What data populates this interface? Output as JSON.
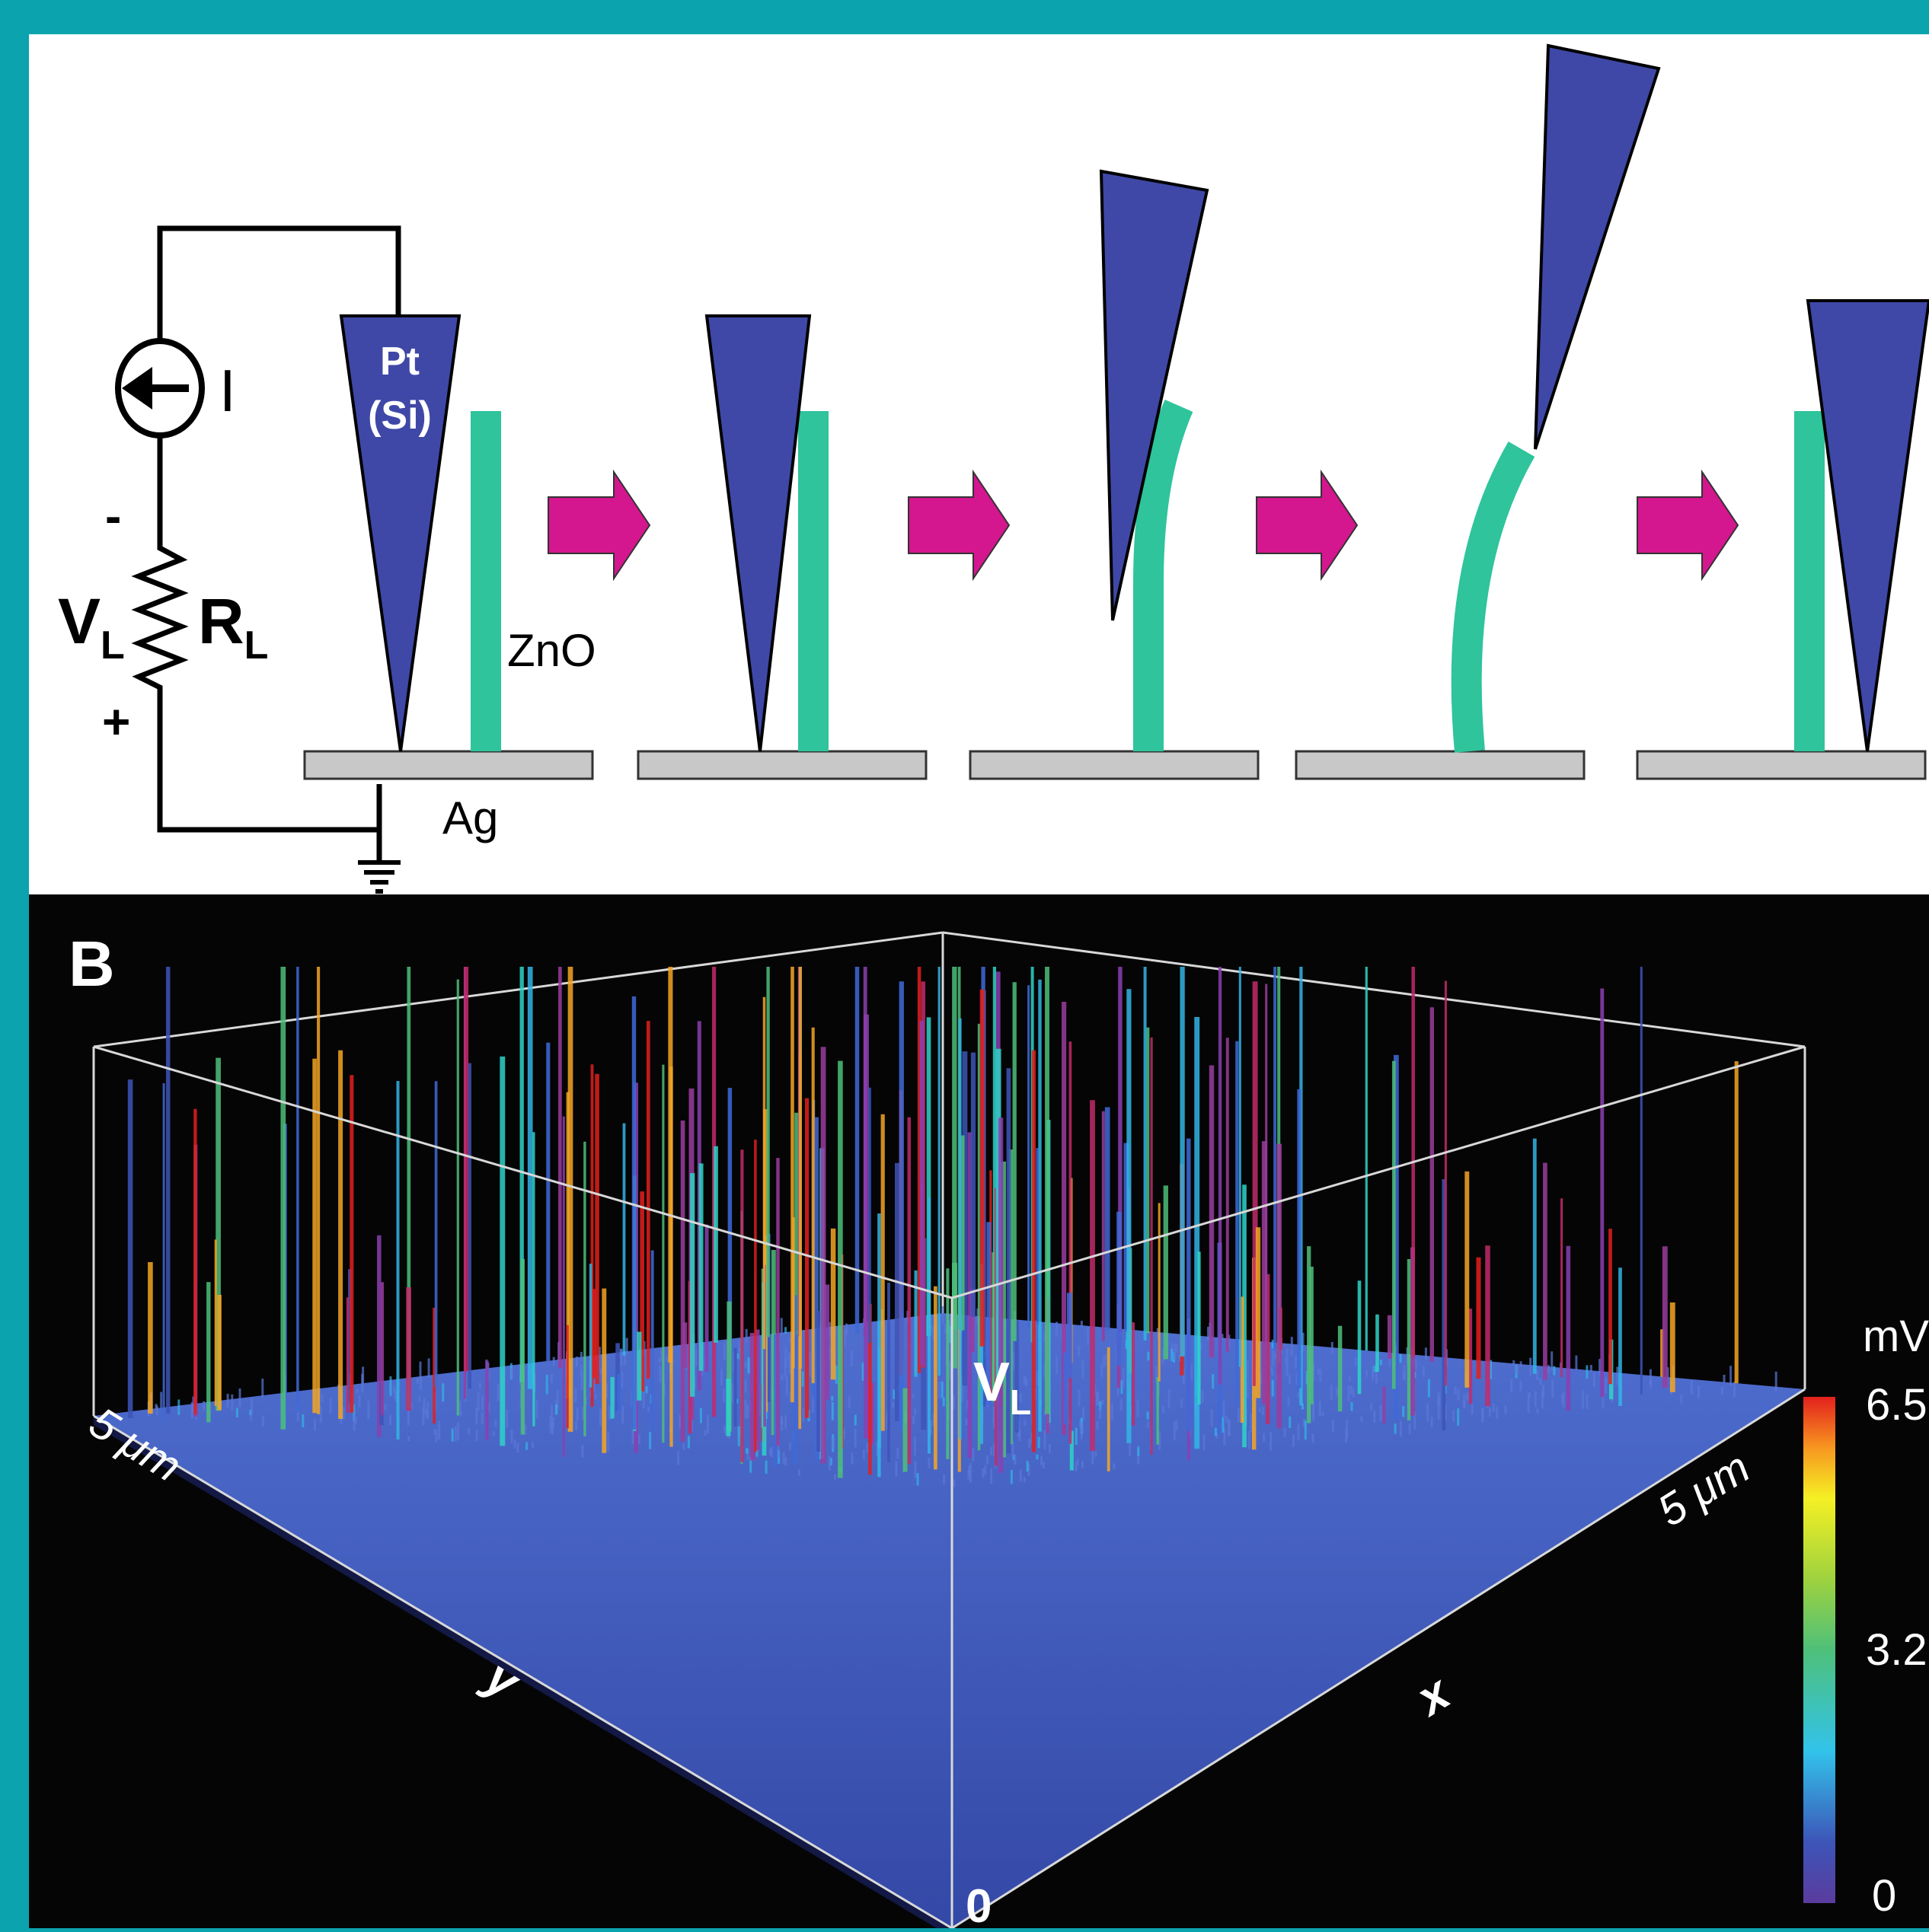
{
  "panel_a": {
    "tip_label_line1": "Pt",
    "tip_label_line2": "(Si)",
    "nanowire_label": "ZnO",
    "substrate_label": "Ag",
    "current_label": "I",
    "load_voltage_label": "V",
    "load_voltage_subscript": "L",
    "load_resistor_label": "R",
    "load_resistor_subscript": "L",
    "minus_sign": "-",
    "plus_sign": "+",
    "colors": {
      "tip": "#3f48a6",
      "nanowire": "#2fc49b",
      "arrow": "#d4168f",
      "substrate": "#c8c8c8"
    }
  },
  "panel_b": {
    "panel_label": "B",
    "axis_y_length": "5 μm",
    "axis_x_length": "5 μm",
    "axis_y_label": "y",
    "axis_x_label": "x",
    "axis_z_label": "V",
    "axis_z_subscript": "L",
    "origin_label": "0",
    "colorbar_unit": "mV",
    "colorbar_ticks": [
      "6.5",
      "3.2",
      "0"
    ],
    "colors": {
      "floor": "#3d55b8",
      "background": "#050505",
      "box_lines": "#d8d8d8"
    }
  }
}
